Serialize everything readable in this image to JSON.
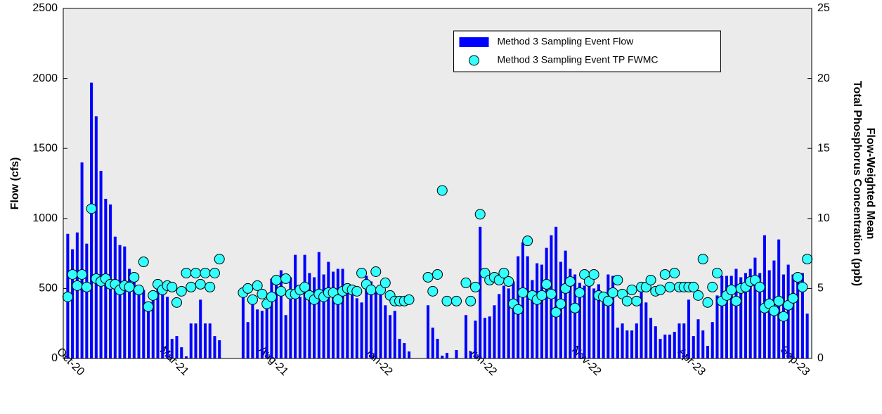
{
  "chart_data": {
    "type": "bar-scatter",
    "y_label": "Flow (cfs)",
    "y2_label": [
      "Flow-Weighted Mean",
      "Total Phosphorus Concentration (ppb)"
    ],
    "categories": [
      "Oct-20",
      null,
      null,
      null,
      null,
      null,
      null,
      null,
      null,
      null,
      null,
      null,
      null,
      null,
      null,
      null,
      null,
      null,
      null,
      null,
      null,
      null,
      "Mar-21",
      null,
      null,
      null,
      null,
      null,
      null,
      null,
      null,
      null,
      null,
      null,
      null,
      null,
      null,
      null,
      null,
      null,
      null,
      null,
      null,
      "Aug-21",
      null,
      null,
      null,
      null,
      null,
      null,
      null,
      null,
      null,
      null,
      null,
      null,
      null,
      null,
      null,
      null,
      null,
      null,
      null,
      null,
      null,
      "Jan-22",
      null,
      null,
      null,
      null,
      null,
      null,
      null,
      null,
      null,
      null,
      null,
      null,
      null,
      null,
      null,
      null,
      null,
      null,
      null,
      null,
      null,
      "Jun-22",
      null,
      null,
      null,
      null,
      null,
      null,
      null,
      null,
      null,
      null,
      null,
      null,
      null,
      null,
      null,
      null,
      null,
      null,
      null,
      null,
      null,
      "Nov-22",
      null,
      null,
      null,
      null,
      null,
      null,
      null,
      null,
      null,
      null,
      null,
      null,
      null,
      null,
      null,
      null,
      null,
      null,
      null,
      null,
      null,
      "Apr-23",
      null,
      null,
      null,
      null,
      null,
      null,
      null,
      null,
      null,
      null,
      null,
      null,
      null,
      null,
      null,
      null,
      null,
      null,
      null,
      null,
      null,
      "Sep-23",
      null,
      null,
      null
    ],
    "series": [
      {
        "name": "Method 3 Sampling Event Flow",
        "type": "bar",
        "color": "#0000ff",
        "values": [
          890,
          780,
          900,
          1400,
          820,
          1970,
          1730,
          1340,
          1140,
          1100,
          870,
          810,
          800,
          640,
          580,
          500,
          490,
          380,
          470,
          500,
          490,
          440,
          140,
          160,
          80,
          15,
          250,
          250,
          420,
          250,
          250,
          160,
          130,
          null,
          null,
          null,
          null,
          470,
          260,
          420,
          350,
          340,
          400,
          570,
          590,
          630,
          310,
          580,
          740,
          440,
          740,
          610,
          580,
          760,
          600,
          690,
          620,
          640,
          640,
          500,
          480,
          430,
          400,
          590,
          550,
          500,
          480,
          380,
          310,
          340,
          140,
          110,
          50,
          null,
          null,
          null,
          380,
          220,
          140,
          20,
          40,
          null,
          60,
          null,
          310,
          50,
          270,
          940,
          290,
          300,
          380,
          460,
          520,
          500,
          550,
          730,
          830,
          730,
          560,
          680,
          670,
          790,
          880,
          940,
          690,
          770,
          640,
          600,
          540,
          520,
          560,
          500,
          530,
          470,
          600,
          590,
          220,
          250,
          200,
          200,
          250,
          490,
          400,
          290,
          230,
          140,
          170,
          170,
          190,
          250,
          250,
          420,
          160,
          280,
          200,
          90,
          260,
          450,
          590,
          590,
          590,
          640,
          580,
          610,
          640,
          720,
          610,
          880,
          630,
          700,
          850,
          600,
          670,
          600,
          580,
          610,
          320
        ]
      },
      {
        "name": "Method 3 Sampling Event TP FWMC",
        "type": "scatter",
        "axis": "y2",
        "color": "#33ffff",
        "values": [
          4.4,
          6,
          5.2,
          6,
          5.1,
          10.7,
          5.7,
          5.5,
          5.7,
          5.3,
          5.3,
          4.9,
          5.2,
          5.1,
          5.8,
          4.9,
          6.9,
          3.7,
          4.5,
          5.3,
          4.9,
          5.2,
          5.1,
          4,
          4.8,
          6.1,
          5.1,
          6.1,
          5.3,
          6.1,
          5.1,
          6.1,
          7.1,
          null,
          null,
          null,
          null,
          4.7,
          5,
          4.2,
          5.2,
          4.6,
          3.9,
          4.4,
          5.6,
          4.8,
          5.7,
          4.6,
          4.6,
          4.9,
          5.1,
          4.5,
          4.2,
          4.6,
          4.4,
          4.7,
          4.7,
          4.2,
          4.8,
          5,
          4.9,
          4.8,
          6.1,
          5.3,
          4.9,
          6.2,
          4.9,
          5.4,
          4.5,
          4.1,
          4.1,
          4.1,
          4.2,
          null,
          null,
          null,
          5.8,
          4.8,
          6,
          12,
          4.1,
          null,
          4.1,
          null,
          5.4,
          4.1,
          5.1,
          10.3,
          6.1,
          5.6,
          5.8,
          5.6,
          6.1,
          5.5,
          3.9,
          3.5,
          4.7,
          8.4,
          4.5,
          4.2,
          4.5,
          5.3,
          4.6,
          3.3,
          3.9,
          5,
          5.5,
          3.6,
          4.7,
          6,
          5.5,
          6,
          4.5,
          4.4,
          4.1,
          4.7,
          5.6,
          4.6,
          4.1,
          4.9,
          4.1,
          5.1,
          5.1,
          5.6,
          4.8,
          4.9,
          6,
          5.1,
          6.1,
          5.1,
          5.1,
          5.1,
          5.1,
          4.5,
          7.1,
          4,
          5.1,
          6.1,
          4.1,
          4.5,
          4.9,
          4.1,
          5,
          5.1,
          5.5,
          5.6,
          5.1,
          3.6,
          3.9,
          3.4,
          4.1,
          3,
          3.8,
          4.3,
          5.8,
          5.1,
          7.1
        ]
      }
    ],
    "ylim": [
      0,
      2500
    ],
    "yticks": [
      0,
      500,
      1000,
      1500,
      2000,
      2500
    ],
    "y2lim": [
      0,
      25
    ],
    "y2ticks": [
      0,
      5,
      10,
      15,
      20,
      25
    ],
    "legend": "upper center"
  }
}
